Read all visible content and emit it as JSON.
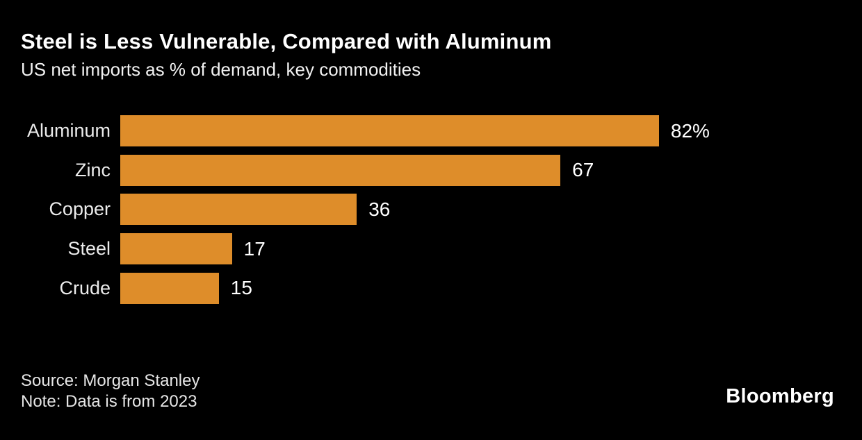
{
  "header": {
    "title": "Steel is Less Vulnerable, Compared with Aluminum",
    "subtitle": "US net imports as % of demand, key commodities"
  },
  "chart_data": {
    "type": "bar",
    "orientation": "horizontal",
    "title": "Steel is Less Vulnerable, Compared with Aluminum",
    "subtitle": "US net imports as % of demand, key commodities",
    "categories": [
      "Aluminum",
      "Zinc",
      "Copper",
      "Steel",
      "Crude"
    ],
    "values": [
      82,
      67,
      36,
      17,
      15
    ],
    "value_labels": [
      "82%",
      "67",
      "36",
      "17",
      "15"
    ],
    "unit": "% of demand",
    "xlim": [
      0,
      82
    ],
    "grid": false,
    "legend_position": "none",
    "bar_color": "#de8d2a",
    "background_color": "#000000",
    "label_color": "#ebebeb",
    "value_label_color": "#ffffff"
  },
  "footer": {
    "source": "Source: Morgan Stanley",
    "note": "Note: Data is from 2023",
    "brand": "Bloomberg"
  }
}
